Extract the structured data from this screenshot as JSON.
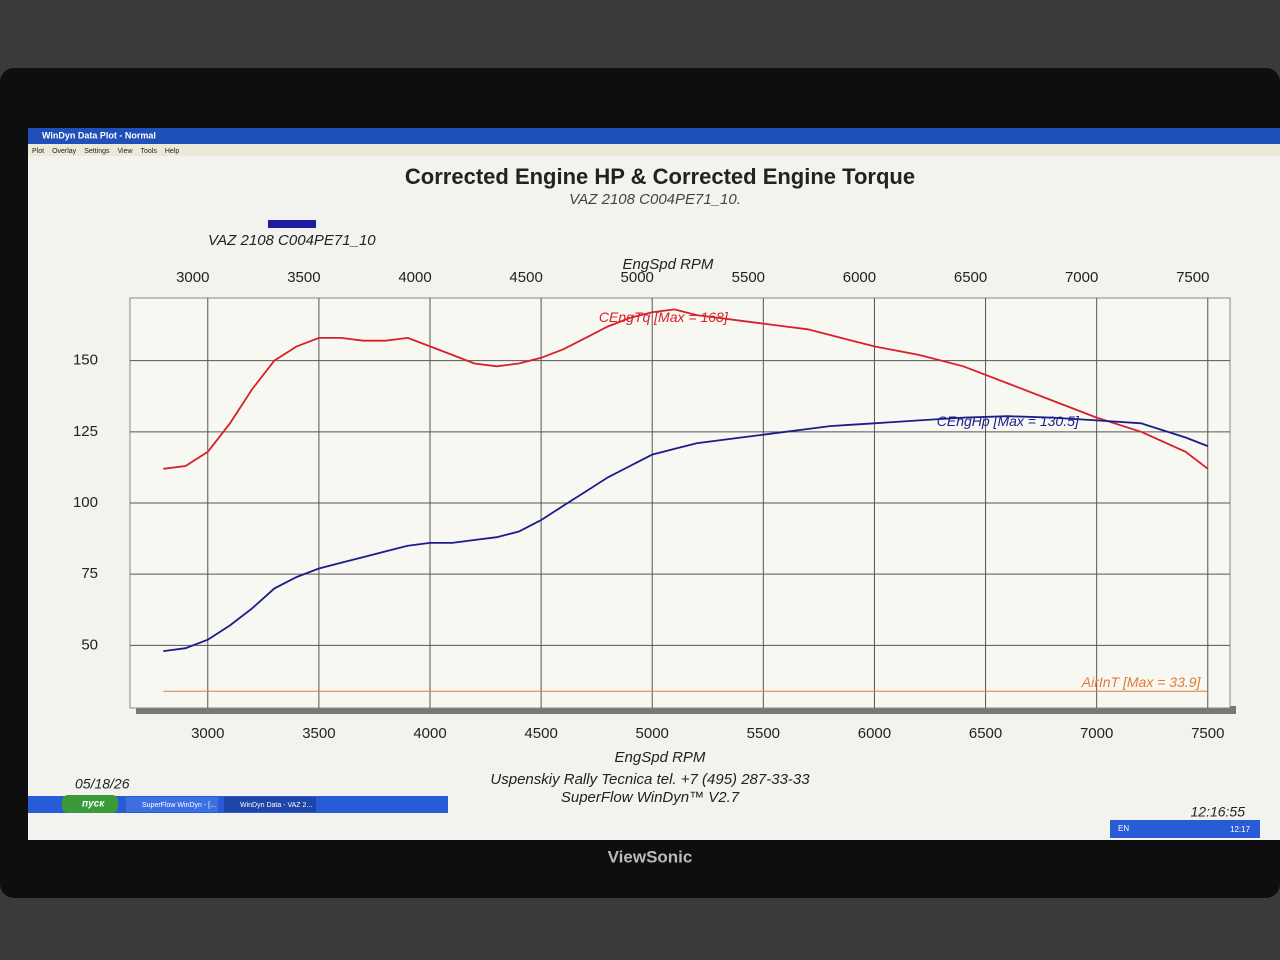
{
  "window": {
    "title": "WinDyn Data Plot - Normal",
    "menu": [
      "Plot",
      "Overlay",
      "Settings",
      "View",
      "Tools",
      "Help"
    ]
  },
  "chart_data": {
    "type": "line",
    "title": "Corrected Engine HP & Corrected Engine Torque",
    "subtitle": "VAZ 2108 C004PE71_10.",
    "legend": {
      "label": "VAZ 2108 C004PE71_10",
      "color": "#1c1ca0"
    },
    "xlabel": "EngSpd  RPM",
    "x": [
      2800,
      2900,
      3000,
      3100,
      3200,
      3300,
      3400,
      3500,
      3600,
      3700,
      3800,
      3900,
      4000,
      4100,
      4200,
      4300,
      4400,
      4500,
      4600,
      4700,
      4800,
      4900,
      5000,
      5100,
      5200,
      5300,
      5400,
      5500,
      5600,
      5700,
      5800,
      5900,
      6000,
      6200,
      6400,
      6600,
      6800,
      7000,
      7200,
      7400,
      7500
    ],
    "series": [
      {
        "name": "CEngTq [Max = 168]",
        "color": "#d8202a",
        "values": [
          112,
          113,
          118,
          128,
          140,
          150,
          155,
          158,
          158,
          157,
          157,
          158,
          155,
          152,
          149,
          148,
          149,
          151,
          154,
          158,
          162,
          165,
          167,
          168,
          166,
          165,
          164,
          163,
          162,
          161,
          159,
          157,
          155,
          152,
          148,
          142,
          136,
          130,
          125,
          118,
          112
        ]
      },
      {
        "name": "CEngHp [Max = 130.5]",
        "color": "#1c1c8c",
        "values": [
          48,
          49,
          52,
          57,
          63,
          70,
          74,
          77,
          79,
          81,
          83,
          85,
          86,
          86,
          87,
          88,
          90,
          94,
          99,
          104,
          109,
          113,
          117,
          119,
          121,
          122,
          123,
          124,
          125,
          126,
          127,
          127.5,
          128,
          129,
          130,
          130.5,
          130,
          129,
          128,
          123,
          120
        ]
      },
      {
        "name": "AirInT [Max = 33.9]",
        "color": "#e07a3a",
        "values": [
          33.9,
          33.9,
          33.9,
          33.9,
          33.9,
          33.9,
          33.9,
          33.9,
          33.9,
          33.9,
          33.9,
          33.9,
          33.9,
          33.9,
          33.9,
          33.9,
          33.9,
          33.9,
          33.9,
          33.9,
          33.9,
          33.9,
          33.9,
          33.9,
          33.9,
          33.9,
          33.9,
          33.9,
          33.9,
          33.9,
          33.9,
          33.9,
          33.9,
          33.9,
          33.9,
          33.9,
          33.9,
          33.9,
          33.9,
          33.9,
          33.9
        ]
      }
    ],
    "xlim": [
      2650,
      7600
    ],
    "xticks": [
      3000,
      3500,
      4000,
      4500,
      5000,
      5500,
      6000,
      6500,
      7000,
      7500
    ],
    "ylim": [
      28,
      172
    ],
    "yticks": [
      50,
      75,
      100,
      125,
      150
    ],
    "grid": true
  },
  "footer": {
    "date": "05/18/26",
    "company": "Uspenskiy Rally Tecnica   tel. +7 (495) 287-33-33",
    "software": "SuperFlow WinDyn™ V2.7",
    "time": "12:16:55"
  },
  "taskbar": {
    "start": "пуск",
    "tasks": [
      "SuperFlow WinDyn - [...",
      "WinDyn Data - VAZ 2..."
    ],
    "lang": "EN",
    "clock": "12:17"
  },
  "monitor": {
    "brand": "ViewSonic"
  }
}
